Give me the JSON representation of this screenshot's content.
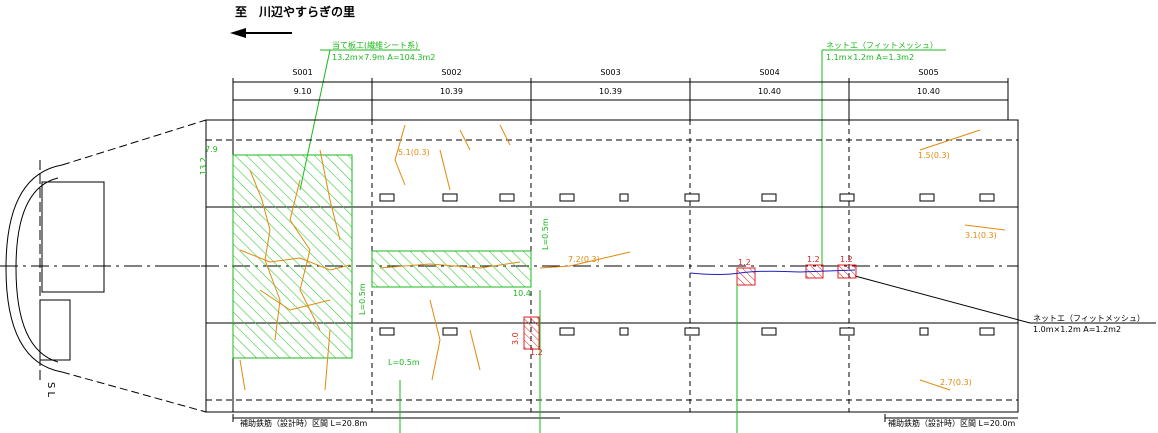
{
  "direction": "至　川辺やすらぎの里",
  "repairs": [
    {
      "label": "当て板工(繊維シート系)",
      "size": "13.2m×7.9m A=104.3m2"
    },
    {
      "label": "ネットエ（フィットメッシュ）",
      "size": "1.1m×1.2m A=1.3m2"
    },
    {
      "label": "ネットエ（フィットメッシュ）",
      "size": "1.0m×1.2m A=1.2m2"
    }
  ],
  "spans": [
    {
      "id": "S001",
      "length": "9.10"
    },
    {
      "id": "S002",
      "length": "10.39"
    },
    {
      "id": "S003",
      "length": "10.39"
    },
    {
      "id": "S004",
      "length": "10.40"
    },
    {
      "id": "S005",
      "length": "10.40"
    }
  ],
  "sections": [
    "補助鉄筋（設計時）区間 L=20.8m",
    "補助鉄筋（設計時）区間 L=20.0m"
  ],
  "section_line": "S L",
  "annotations": [
    "L=0.5m",
    "L=0.5m",
    "L=0.5m",
    "1.2",
    "1.2",
    "1.2",
    "1.2",
    "3.0",
    "10.4",
    "7.9",
    "13.2",
    "5.1(0.3)",
    "7.2(0.3)",
    "3.1(0.3)",
    "2.7(0.3)",
    "1.5(0.3)"
  ]
}
